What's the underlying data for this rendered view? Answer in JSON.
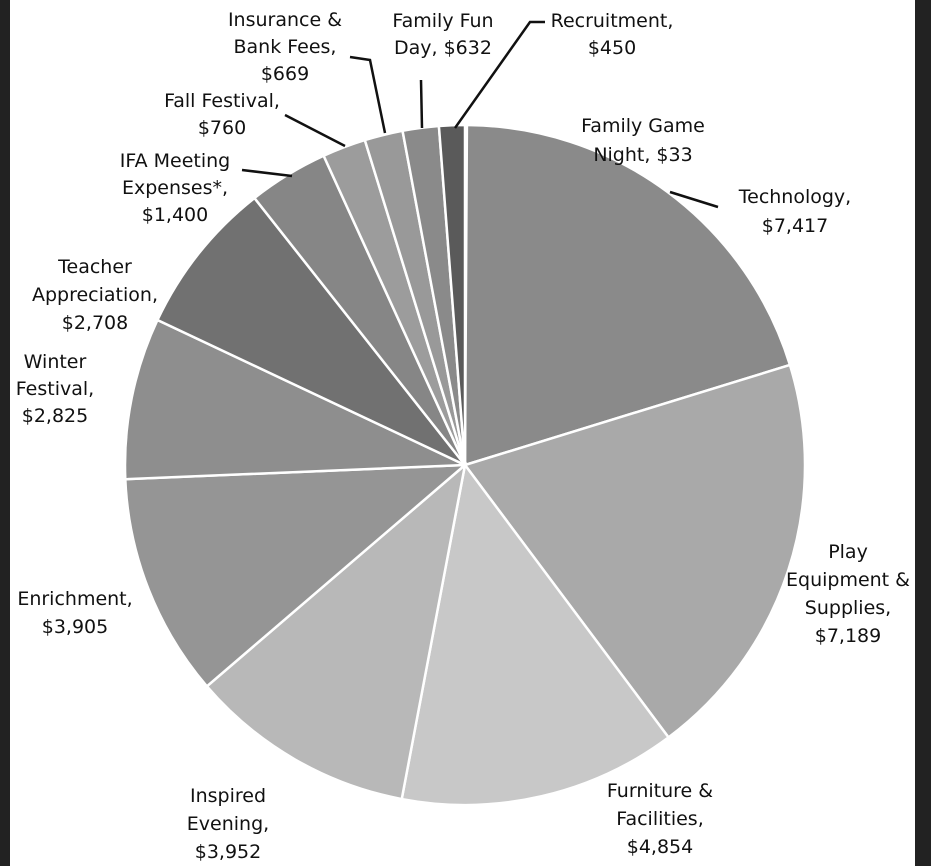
{
  "chart_data": {
    "type": "pie",
    "categories": [
      [
        "Family Game",
        "Night,"
      ],
      [
        "Technology,"
      ],
      [
        "Play",
        "Equipment &",
        "Supplies,"
      ],
      [
        "Furniture &",
        "Facilities,"
      ],
      [
        "Inspired",
        "Evening,"
      ],
      [
        "Enrichment,"
      ],
      [
        "Winter",
        "Festival,"
      ],
      [
        "Teacher",
        "Appreciation,"
      ],
      [
        "IFA Meeting",
        "Expenses*,"
      ],
      [
        "Fall Festival,"
      ],
      [
        "Insurance &",
        "Bank Fees,"
      ],
      [
        "Family Fun",
        "Day,"
      ],
      [
        "Recruitment,"
      ]
    ],
    "values": [
      33,
      7417,
      7189,
      4854,
      3952,
      3905,
      2825,
      2708,
      1400,
      760,
      669,
      632,
      450
    ],
    "value_labels": [
      "$33",
      "$7,417",
      "$7,189",
      "$4,854",
      "$3,952",
      "$3,905",
      "$2,825",
      "$2,708",
      "$1,400",
      "$760",
      "$669",
      "$632",
      "$450"
    ],
    "colors": [
      "#444444",
      "#8a8a8a",
      "#a9a9a9",
      "#c8c8c8",
      "#b8b8b8",
      "#959595",
      "#8e8e8e",
      "#717171",
      "#868686",
      "#9c9c9c",
      "#999999",
      "#8a8a8a",
      "#5a5a5a"
    ]
  }
}
